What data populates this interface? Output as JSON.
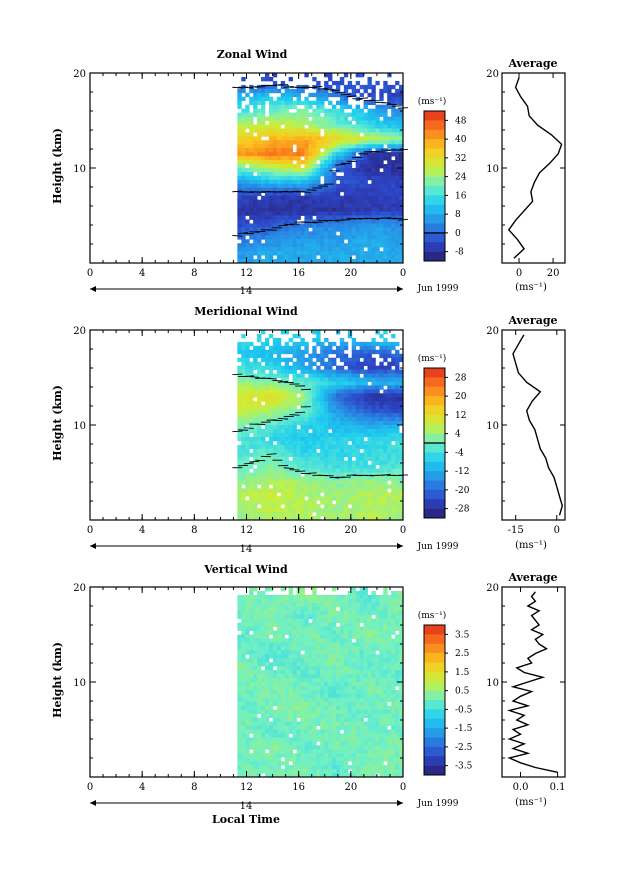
{
  "chart_data": [
    {
      "type": "heatmap",
      "title": "Zonal Wind",
      "ylabel": "Height (km)",
      "y_ticks": [
        "10",
        "20"
      ],
      "x_ticks": [
        "0",
        "4",
        "8",
        "12",
        "16",
        "20",
        "0"
      ],
      "xlim": [
        0,
        24
      ],
      "ylim": [
        0,
        20
      ],
      "day_label": "14",
      "month_label": "Jun 1999",
      "data_start_hour": 11.3,
      "unit_label": "(ms⁻¹)",
      "colorbar_ticks": [
        "48",
        "40",
        "32",
        "24",
        "16",
        "8",
        "0",
        "-8"
      ],
      "colorbar_range": [
        -12,
        52
      ],
      "zero_line_value": 0,
      "field": [
        {
          "z": 19.0,
          "values": [
            -4,
            -4,
            -4,
            -4,
            -2,
            -2
          ]
        },
        {
          "z": 17.5,
          "values": [
            8,
            12,
            10,
            2,
            -4,
            -6
          ]
        },
        {
          "z": 16.0,
          "values": [
            16,
            20,
            22,
            16,
            10,
            2
          ]
        },
        {
          "z": 14.5,
          "values": [
            26,
            28,
            26,
            20,
            14,
            10
          ]
        },
        {
          "z": 13.0,
          "values": [
            34,
            38,
            40,
            34,
            28,
            24
          ]
        },
        {
          "z": 11.5,
          "values": [
            40,
            44,
            44,
            14,
            -6,
            -8
          ]
        },
        {
          "z": 10.0,
          "values": [
            20,
            26,
            30,
            -2,
            -8,
            -8
          ]
        },
        {
          "z": 8.5,
          "values": [
            6,
            10,
            10,
            -2,
            -4,
            -6
          ]
        },
        {
          "z": 7.0,
          "values": [
            -4,
            -6,
            -6,
            -6,
            -6,
            -4
          ]
        },
        {
          "z": 5.5,
          "values": [
            -8,
            -8,
            -8,
            -8,
            -6,
            -6
          ]
        },
        {
          "z": 4.0,
          "values": [
            -4,
            -2,
            2,
            4,
            6,
            4
          ]
        },
        {
          "z": 2.5,
          "values": [
            2,
            4,
            6,
            6,
            8,
            6
          ]
        },
        {
          "z": 1.0,
          "values": [
            6,
            8,
            8,
            8,
            8,
            8
          ]
        }
      ],
      "average": {
        "title": "Average",
        "xlabel": "(ms⁻¹)",
        "x_ticks": [
          "0",
          "20"
        ],
        "y_ticks": [
          "10",
          "20"
        ],
        "xlim": [
          -10,
          27
        ],
        "z": [
          0.5,
          1.5,
          2.5,
          3.5,
          4.5,
          5.5,
          6.5,
          7.5,
          8.5,
          9.5,
          10.5,
          11.5,
          12.5,
          13.5,
          14.5,
          15.5,
          16.5,
          17.5,
          18.5,
          19.5
        ],
        "u": [
          -3,
          3,
          -1,
          -6,
          -2,
          3,
          8,
          7,
          9,
          12,
          18,
          23,
          25,
          19,
          11,
          6,
          5,
          1,
          -2,
          0
        ]
      }
    },
    {
      "type": "heatmap",
      "title": "Meridional Wind",
      "ylabel": "Height (km)",
      "y_ticks": [
        "10",
        "20"
      ],
      "x_ticks": [
        "0",
        "4",
        "8",
        "12",
        "16",
        "20",
        "0"
      ],
      "xlim": [
        0,
        24
      ],
      "ylim": [
        0,
        20
      ],
      "day_label": "14",
      "month_label": "Jun 1999",
      "data_start_hour": 11.3,
      "unit_label": "(ms⁻¹)",
      "colorbar_ticks": [
        "28",
        "20",
        "12",
        "4",
        "-4",
        "-12",
        "-20",
        "-28"
      ],
      "colorbar_range": [
        -32,
        32
      ],
      "zero_line_value": 0,
      "field": [
        {
          "z": 19.0,
          "values": [
            -4,
            -6,
            -8,
            -10,
            -8,
            -6
          ]
        },
        {
          "z": 17.5,
          "values": [
            -8,
            -10,
            -14,
            -20,
            -22,
            -20
          ]
        },
        {
          "z": 16.0,
          "values": [
            -4,
            -6,
            -12,
            -20,
            -26,
            -24
          ]
        },
        {
          "z": 14.5,
          "values": [
            4,
            2,
            -2,
            -6,
            -10,
            -10
          ]
        },
        {
          "z": 13.0,
          "values": [
            10,
            12,
            4,
            -20,
            -28,
            -28
          ]
        },
        {
          "z": 11.5,
          "values": [
            8,
            6,
            0,
            -14,
            -22,
            -24
          ]
        },
        {
          "z": 10.0,
          "values": [
            2,
            -2,
            -6,
            -10,
            -12,
            -12
          ]
        },
        {
          "z": 8.5,
          "values": [
            -2,
            -6,
            -8,
            -6,
            -6,
            -4
          ]
        },
        {
          "z": 7.0,
          "values": [
            -4,
            0,
            -6,
            -6,
            -6,
            -4
          ]
        },
        {
          "z": 5.5,
          "values": [
            0,
            2,
            -2,
            -4,
            -4,
            -2
          ]
        },
        {
          "z": 4.0,
          "values": [
            2,
            6,
            4,
            2,
            4,
            2
          ]
        },
        {
          "z": 2.5,
          "values": [
            6,
            8,
            6,
            4,
            6,
            6
          ]
        },
        {
          "z": 1.0,
          "values": [
            4,
            6,
            6,
            4,
            6,
            4
          ]
        }
      ],
      "average": {
        "title": "Average",
        "xlabel": "(ms⁻¹)",
        "x_ticks": [
          "-15",
          "0"
        ],
        "y_ticks": [
          "10",
          "20"
        ],
        "xlim": [
          -20,
          3
        ],
        "z": [
          0.5,
          1.5,
          2.5,
          3.5,
          4.5,
          5.5,
          6.5,
          7.5,
          8.5,
          9.5,
          10.5,
          11.5,
          12.5,
          13.5,
          14.5,
          15.5,
          16.5,
          17.5,
          18.5,
          19.5
        ],
        "v": [
          1,
          2,
          1,
          0,
          -1,
          -3,
          -4,
          -6,
          -7,
          -8,
          -10,
          -11,
          -9,
          -6,
          -11,
          -14,
          -15,
          -16,
          -14,
          -12
        ]
      }
    },
    {
      "type": "heatmap",
      "title": "Vertical Wind",
      "ylabel": "Height (km)",
      "xlabel": "Local Time",
      "y_ticks": [
        "10",
        "20"
      ],
      "x_ticks": [
        "0",
        "4",
        "8",
        "12",
        "16",
        "20",
        "0"
      ],
      "xlim": [
        0,
        24
      ],
      "ylim": [
        0,
        20
      ],
      "day_label": "14",
      "month_label": "Jun 1999",
      "data_start_hour": 11.3,
      "unit_label": "(ms⁻¹)",
      "colorbar_ticks": [
        "3.5",
        "2.5",
        "1.5",
        "0.5",
        "-0.5",
        "-1.5",
        "-2.5",
        "-3.5"
      ],
      "colorbar_range": [
        -4,
        4
      ],
      "field": [
        {
          "z": 19.0,
          "values": [
            0.2,
            0.0,
            0.4,
            0.1,
            -0.2,
            0.3
          ]
        },
        {
          "z": 17.0,
          "values": [
            0.0,
            0.3,
            -0.3,
            0.2,
            0.0,
            0.1
          ]
        },
        {
          "z": 15.0,
          "values": [
            -0.2,
            0.1,
            0.2,
            -0.1,
            0.3,
            0.0
          ]
        },
        {
          "z": 13.0,
          "values": [
            0.1,
            -0.3,
            0.0,
            0.2,
            -0.2,
            0.2
          ]
        },
        {
          "z": 11.0,
          "values": [
            0.3,
            0.0,
            -0.2,
            0.1,
            0.0,
            -0.1
          ]
        },
        {
          "z": 9.0,
          "values": [
            0.0,
            0.2,
            0.1,
            -0.3,
            0.2,
            0.0
          ]
        },
        {
          "z": 7.0,
          "values": [
            -0.1,
            0.1,
            0.3,
            0.0,
            -0.1,
            0.2
          ]
        },
        {
          "z": 5.0,
          "values": [
            0.2,
            -0.2,
            0.0,
            0.2,
            0.1,
            -0.1
          ]
        },
        {
          "z": 3.0,
          "values": [
            0.0,
            0.3,
            -0.1,
            0.1,
            0.0,
            0.2
          ]
        },
        {
          "z": 1.0,
          "values": [
            0.1,
            0.0,
            0.2,
            -0.2,
            0.3,
            0.0
          ]
        }
      ],
      "average": {
        "title": "Average",
        "xlabel": "(ms⁻¹)",
        "x_ticks": [
          "0.0",
          "0.1"
        ],
        "y_ticks": [
          "10",
          "20"
        ],
        "xlim": [
          -0.05,
          0.12
        ],
        "z": [
          0.5,
          1.0,
          1.5,
          2.0,
          2.5,
          3.0,
          3.5,
          4.0,
          4.5,
          5.0,
          5.5,
          6.0,
          6.5,
          7.0,
          7.5,
          8.0,
          8.5,
          9.0,
          9.5,
          10.0,
          10.5,
          11.0,
          11.5,
          12.0,
          12.5,
          13.0,
          13.5,
          14.0,
          14.5,
          15.0,
          15.5,
          16.0,
          16.5,
          17.0,
          17.5,
          18.0,
          18.5,
          19.0,
          19.5
        ],
        "w": [
          0.1,
          0.04,
          0.0,
          -0.03,
          0.02,
          -0.02,
          0.01,
          -0.03,
          0.0,
          -0.02,
          0.02,
          -0.01,
          0.01,
          -0.03,
          0.02,
          -0.02,
          0.0,
          0.03,
          -0.02,
          0.02,
          0.06,
          0.01,
          -0.01,
          0.03,
          0.02,
          0.04,
          0.07,
          0.05,
          0.04,
          0.06,
          0.03,
          0.05,
          0.04,
          0.03,
          0.05,
          0.02,
          0.04,
          0.03,
          0.04
        ]
      }
    }
  ]
}
